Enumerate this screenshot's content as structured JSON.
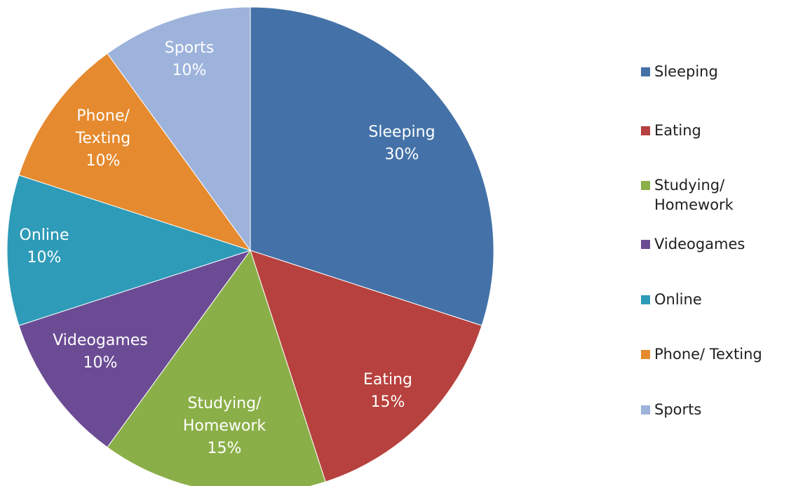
{
  "chart_data": {
    "type": "pie",
    "title": "",
    "slices": [
      {
        "name": "Sleeping",
        "value": 30,
        "label_lines": [
          "Sleeping",
          "30%"
        ],
        "color": "#4472A8"
      },
      {
        "name": "Eating",
        "value": 15,
        "label_lines": [
          "Eating",
          "15%"
        ],
        "color": "#B7413E"
      },
      {
        "name": "Studying/ Homework",
        "value": 15,
        "label_lines": [
          "Studying/",
          "Homework",
          "15%"
        ],
        "color": "#8BAF48"
      },
      {
        "name": "Videogames",
        "value": 10,
        "label_lines": [
          "Videogames",
          "10%"
        ],
        "color": "#6B4C94"
      },
      {
        "name": "Online",
        "value": 10,
        "label_lines": [
          "Online",
          "10%"
        ],
        "color": "#2E9BB8"
      },
      {
        "name": "Phone/ Texting",
        "value": 10,
        "label_lines": [
          "Phone/",
          "Texting",
          "10%"
        ],
        "color": "#E58A2E"
      },
      {
        "name": "Sports",
        "value": 10,
        "label_lines": [
          "Sports",
          "10%"
        ],
        "color": "#9DB3DB"
      }
    ],
    "start_angle_deg": 0,
    "direction": "clockwise",
    "legend": {
      "position": "right",
      "entries": [
        {
          "label": "Sleeping",
          "color": "#4472A8"
        },
        {
          "label": "Eating",
          "color": "#B7413E"
        },
        {
          "label": "Studying/\nHomework",
          "color": "#8BAF48"
        },
        {
          "label": "Videogames",
          "color": "#6B4C94"
        },
        {
          "label": "Online",
          "color": "#2E9BB8"
        },
        {
          "label": "Phone/ Texting",
          "color": "#E58A2E"
        },
        {
          "label": "Sports",
          "color": "#9DB3DB"
        }
      ]
    }
  }
}
